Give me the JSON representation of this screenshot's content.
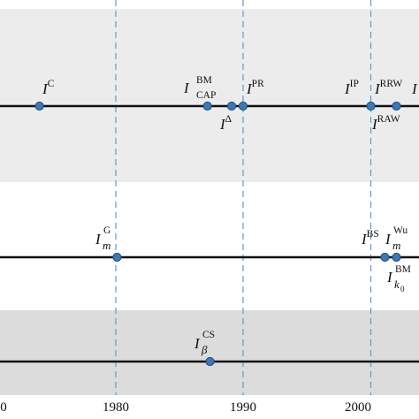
{
  "colors": {
    "band": "#ececec",
    "band_dark": "#dcdcdc",
    "axis": "#111111",
    "guide": "#5b9bd5",
    "dot": "#3a78b8",
    "dot_edge": "#1f4e79"
  },
  "x_axis": {
    "ticks": [
      {
        "year": 1970,
        "label": "0"
      },
      {
        "year": 1980,
        "label": "1980"
      },
      {
        "year": 1990,
        "label": "1990"
      },
      {
        "year": 2000,
        "label": "2000"
      }
    ],
    "guide_years": [
      1980,
      1990,
      2001
    ]
  },
  "rows": [
    {
      "events": [
        {
          "year": 1973.2,
          "base": "I",
          "sup": "C"
        },
        {
          "year": 1987.2,
          "base": "I",
          "sup": "BM",
          "sub": "CAP"
        },
        {
          "year": 1989.1,
          "base": "I",
          "sup": "Δ"
        },
        {
          "year": 1990.0,
          "base": "I",
          "sup": "PR"
        },
        {
          "year": 2001.0,
          "base": "I",
          "sup": "IP"
        },
        {
          "year": 2003.0,
          "base": "I",
          "sup": "RRW",
          "sup2": "RAW"
        }
      ]
    },
    {
      "events": [
        {
          "year": 1980.1,
          "base": "I",
          "sup": "G",
          "sub": "m"
        },
        {
          "year": 2002.1,
          "base": "I",
          "sup": "BS"
        },
        {
          "year": 2003.0,
          "base": "I",
          "sup": "Wu",
          "sub": "m",
          "extra_sup": "BM",
          "extra_sub": "k",
          "extra_subsub": "0"
        }
      ]
    },
    {
      "events": [
        {
          "year": 1987.4,
          "base": "I",
          "sup": "CS",
          "sub": "β"
        }
      ]
    }
  ]
}
